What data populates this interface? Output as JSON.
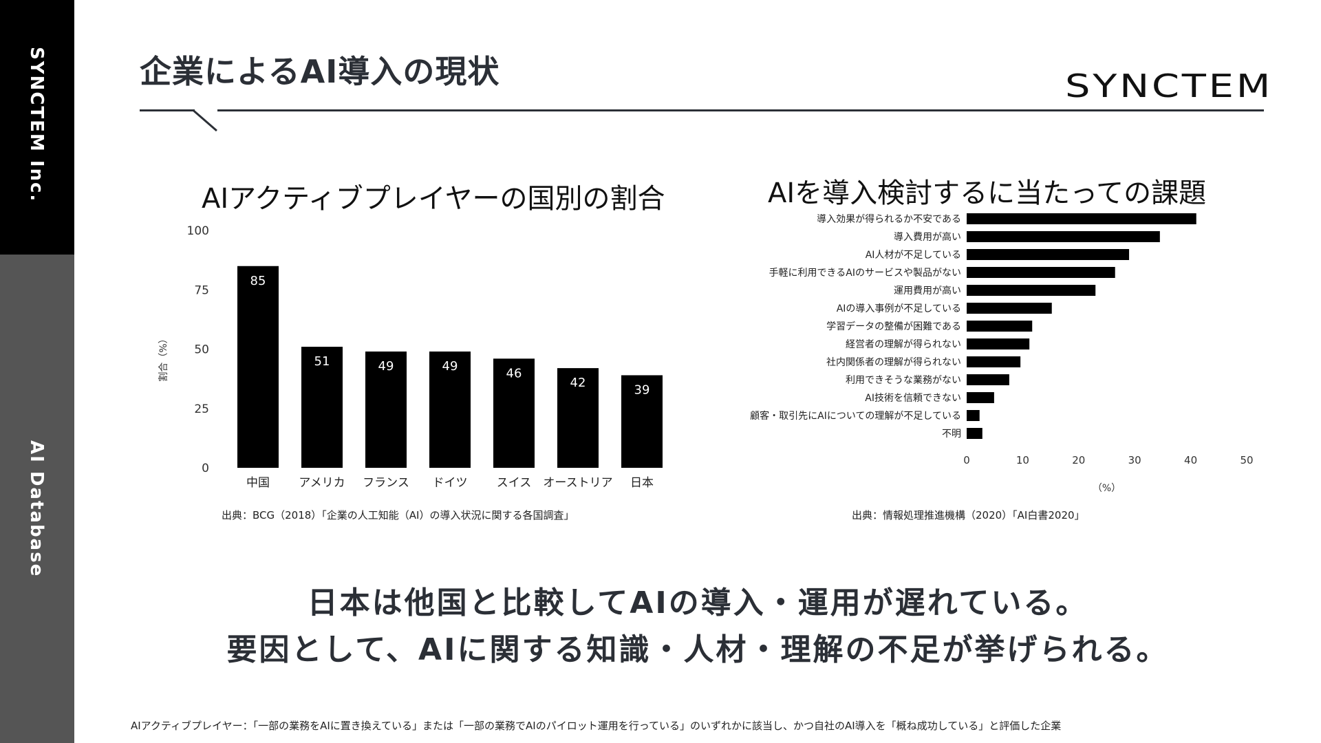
{
  "sidebar": {
    "company": "SYNCTEM Inc.",
    "section": "AI Database"
  },
  "header": {
    "title": "企業によるAI導入の現状",
    "logo": "SYNCTEM"
  },
  "chart_data": [
    {
      "type": "bar",
      "title": "AIアクティブプレイヤーの国別の割合",
      "ylabel": "割合（%）",
      "categories": [
        "中国",
        "アメリカ",
        "フランス",
        "ドイツ",
        "スイス",
        "オーストリア",
        "日本"
      ],
      "values": [
        85,
        51,
        49,
        49,
        46,
        42,
        39
      ],
      "yticks": [
        "0",
        "25",
        "50",
        "75",
        "100"
      ],
      "ylim": [
        0,
        100
      ],
      "color": "#000000",
      "source": "出典：BCG（2018）「企業の人工知能（AI）の導入状況に関する各国調査」"
    },
    {
      "type": "bar",
      "orientation": "horizontal",
      "title": "AIを導入検討するに当たっての課題",
      "xlabel": "（%）",
      "categories": [
        "導入効果が得られるか不安である",
        "導入費用が高い",
        "AI人材が不足している",
        "手軽に利用できるAIのサービスや製品がない",
        "運用費用が高い",
        "AIの導入事例が不足している",
        "学習データの整備が困難である",
        "経営者の理解が得られない",
        "社内関係者の理解が得られない",
        "利用できそうな業務がない",
        "AI技術を信頼できない",
        "顧客・取引先にAIについての理解が不足している",
        "不明"
      ],
      "values": [
        41,
        34.5,
        29,
        26.5,
        23,
        15.2,
        11.7,
        11.2,
        9.6,
        7.6,
        4.9,
        2.3,
        2.8
      ],
      "xticks": [
        "0",
        "10",
        "20",
        "30",
        "40",
        "50"
      ],
      "xlim": [
        0,
        50
      ],
      "color": "#000000",
      "source": "出典：情報処理推進機構（2020）「AI白書2020」"
    }
  ],
  "conclusion": {
    "line1": "日本は他国と比較してAIの導入・運用が遅れている。",
    "line2": "要因として、AIに関する知識・人材・理解の不足が挙げられる。"
  },
  "footnote": "AIアクティブプレイヤー：「一部の業務をAIに置き換えている」または「一部の業務でAIのパイロット運用を行っている」のいずれかに該当し、かつ自社のAI導入を「概ね成功している」と評価した企業"
}
